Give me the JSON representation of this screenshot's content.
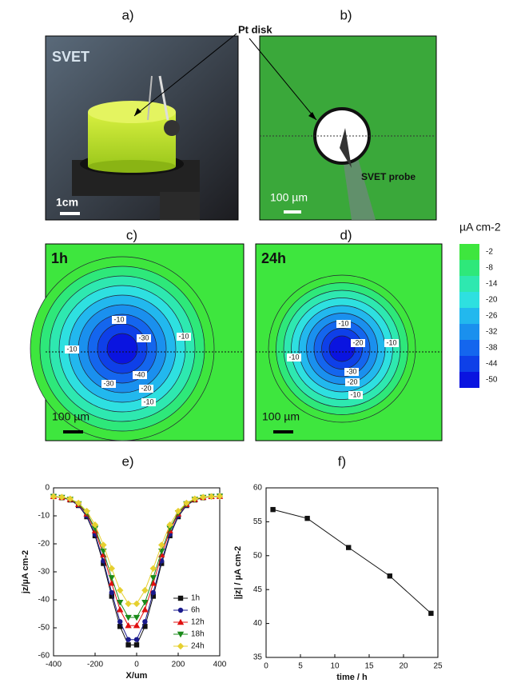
{
  "panels": {
    "a": "a)",
    "b": "b)",
    "c": "c)",
    "d": "d)",
    "e": "e)",
    "f": "f)"
  },
  "photo_a": {
    "label": "SVET",
    "scale": "1cm"
  },
  "annotation": "Pt disk",
  "photo_b": {
    "probe": "SVET probe",
    "scale": "100 µm"
  },
  "map_c": {
    "time": "1h",
    "scale": "100 µm",
    "contour_labels": [
      "-10",
      "-30",
      "-10",
      "-10",
      "-40",
      "-30",
      "-20",
      "-10"
    ]
  },
  "map_d": {
    "time": "24h",
    "scale": "100 µm",
    "contour_labels": [
      "-10",
      "-20",
      "-10",
      "-10",
      "-30",
      "-20",
      "-10"
    ]
  },
  "colorbar": {
    "title": "µA cm-2",
    "values": [
      -2,
      -8,
      -14,
      -20,
      -26,
      -32,
      -38,
      -44,
      -50
    ],
    "colors": [
      "#3ee63e",
      "#2ee87a",
      "#2ee8b0",
      "#2ee0e0",
      "#22b8ee",
      "#1a90ee",
      "#1466ee",
      "#0e40e8",
      "#0a14e0"
    ]
  },
  "chart_data": [
    {
      "type": "line",
      "xlabel": "X/um",
      "ylabel": "jz/µA cm-2",
      "x": [
        -400,
        -360,
        -320,
        -280,
        -240,
        -200,
        -160,
        -120,
        -80,
        -40,
        0,
        40,
        80,
        120,
        160,
        200,
        240,
        280,
        320,
        360,
        400
      ],
      "xlim": [
        -400,
        400
      ],
      "ylim": [
        -60,
        0
      ],
      "xticks": [
        -400,
        -200,
        0,
        200,
        400
      ],
      "yticks": [
        0,
        -10,
        -20,
        -30,
        -40,
        -50,
        -60
      ],
      "legend": "lower right",
      "series": [
        {
          "name": "1h",
          "color": "#111111",
          "marker": "square",
          "values": [
            -3.1,
            -3.5,
            -4.3,
            -6.3,
            -10.3,
            -17.1,
            -27.0,
            -38.7,
            -49.5,
            -56.1,
            -56.1,
            -49.5,
            -38.7,
            -27.0,
            -17.1,
            -10.3,
            -6.3,
            -4.3,
            -3.5,
            -3.1,
            -3.0
          ]
        },
        {
          "name": "6h",
          "color": "#1a1a8c",
          "marker": "circle",
          "values": [
            -3.1,
            -3.4,
            -4.2,
            -6.2,
            -10.0,
            -16.6,
            -26.1,
            -37.4,
            -47.8,
            -54.2,
            -54.2,
            -47.8,
            -37.4,
            -26.1,
            -16.6,
            -10.0,
            -6.2,
            -4.2,
            -3.4,
            -3.1,
            -3.0
          ]
        },
        {
          "name": "12h",
          "color": "#e01010",
          "marker": "triangle-up",
          "values": [
            -3.1,
            -3.4,
            -4.1,
            -5.9,
            -9.3,
            -15.3,
            -23.9,
            -34.1,
            -43.5,
            -49.2,
            -49.2,
            -43.5,
            -34.1,
            -23.9,
            -15.3,
            -9.3,
            -5.9,
            -4.1,
            -3.4,
            -3.1,
            -3.0
          ]
        },
        {
          "name": "18h",
          "color": "#1a8a1a",
          "marker": "triangle-down",
          "values": [
            -3.1,
            -3.4,
            -4.1,
            -5.7,
            -8.9,
            -14.5,
            -22.6,
            -32.1,
            -40.9,
            -46.3,
            -46.3,
            -40.9,
            -32.1,
            -22.6,
            -14.5,
            -8.9,
            -5.7,
            -4.1,
            -3.4,
            -3.1,
            -3.0
          ]
        },
        {
          "name": "24h",
          "color": "#e6d030",
          "marker": "diamond",
          "values": [
            -3.1,
            -3.3,
            -3.9,
            -5.4,
            -8.3,
            -13.2,
            -20.4,
            -28.8,
            -36.6,
            -41.4,
            -41.4,
            -36.6,
            -28.8,
            -20.4,
            -13.2,
            -8.3,
            -5.4,
            -3.9,
            -3.3,
            -3.1,
            -3.0
          ]
        }
      ]
    },
    {
      "type": "line",
      "xlabel": "time / h",
      "ylabel": "|jz| / µA cm-2",
      "x": [
        1,
        6,
        12,
        18,
        24
      ],
      "xlim": [
        0,
        25
      ],
      "ylim": [
        35,
        60
      ],
      "xticks": [
        0,
        5,
        10,
        15,
        20,
        25
      ],
      "yticks": [
        35,
        40,
        45,
        50,
        55,
        60
      ],
      "series": [
        {
          "color": "#111111",
          "marker": "square",
          "values": [
            56.8,
            55.5,
            51.2,
            47.0,
            41.5
          ]
        }
      ]
    }
  ]
}
